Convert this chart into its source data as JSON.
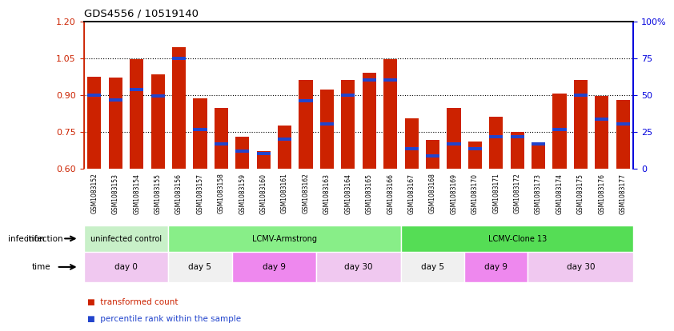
{
  "title": "GDS4556 / 10519140",
  "samples": [
    "GSM1083152",
    "GSM1083153",
    "GSM1083154",
    "GSM1083155",
    "GSM1083156",
    "GSM1083157",
    "GSM1083158",
    "GSM1083159",
    "GSM1083160",
    "GSM1083161",
    "GSM1083162",
    "GSM1083163",
    "GSM1083164",
    "GSM1083165",
    "GSM1083166",
    "GSM1083167",
    "GSM1083168",
    "GSM1083169",
    "GSM1083170",
    "GSM1083171",
    "GSM1083172",
    "GSM1083173",
    "GSM1083174",
    "GSM1083175",
    "GSM1083176",
    "GSM1083177"
  ],
  "bar_heights": [
    0.975,
    0.97,
    1.045,
    0.985,
    1.095,
    0.885,
    0.845,
    0.73,
    0.67,
    0.775,
    0.96,
    0.92,
    0.96,
    0.99,
    1.045,
    0.805,
    0.715,
    0.845,
    0.71,
    0.81,
    0.75,
    0.7,
    0.905,
    0.96,
    0.895,
    0.88
  ],
  "blue_positions": [
    0.9,
    0.88,
    0.92,
    0.895,
    1.05,
    0.76,
    0.7,
    0.67,
    0.66,
    0.72,
    0.875,
    0.78,
    0.9,
    0.96,
    0.96,
    0.68,
    0.65,
    0.7,
    0.68,
    0.73,
    0.73,
    0.7,
    0.76,
    0.9,
    0.8,
    0.78
  ],
  "bar_color": "#cc2200",
  "blue_color": "#2244cc",
  "ylim_left": [
    0.6,
    1.2
  ],
  "yticks_left": [
    0.6,
    0.75,
    0.9,
    1.05,
    1.2
  ],
  "ylim_right": [
    0,
    100
  ],
  "yticks_right": [
    0,
    25,
    50,
    75,
    100
  ],
  "yticks_right_labels": [
    "0",
    "25",
    "50",
    "75",
    "100%"
  ],
  "gridlines": [
    0.75,
    0.9,
    1.05
  ],
  "infection_groups": [
    {
      "label": "uninfected control",
      "start": 0,
      "end": 4,
      "color": "#c8f0c8"
    },
    {
      "label": "LCMV-Armstrong",
      "start": 4,
      "end": 15,
      "color": "#88ee88"
    },
    {
      "label": "LCMV-Clone 13",
      "start": 15,
      "end": 26,
      "color": "#55dd55"
    }
  ],
  "time_groups": [
    {
      "label": "day 0",
      "start": 0,
      "end": 4,
      "color": "#f0c8f0"
    },
    {
      "label": "day 5",
      "start": 4,
      "end": 7,
      "color": "#f0f0f0"
    },
    {
      "label": "day 9",
      "start": 7,
      "end": 11,
      "color": "#ee88ee"
    },
    {
      "label": "day 30",
      "start": 11,
      "end": 15,
      "color": "#f0c8f0"
    },
    {
      "label": "day 5",
      "start": 15,
      "end": 18,
      "color": "#f0f0f0"
    },
    {
      "label": "day 9",
      "start": 18,
      "end": 21,
      "color": "#ee88ee"
    },
    {
      "label": "day 30",
      "start": 21,
      "end": 26,
      "color": "#f0c8f0"
    }
  ],
  "bar_color_label": "transformed count",
  "blue_color_label": "percentile rank within the sample",
  "left_axis_color": "#cc2200",
  "right_axis_color": "#0000dd",
  "tick_bg_color": "#d8d8d8",
  "plot_bg_color": "#ffffff"
}
